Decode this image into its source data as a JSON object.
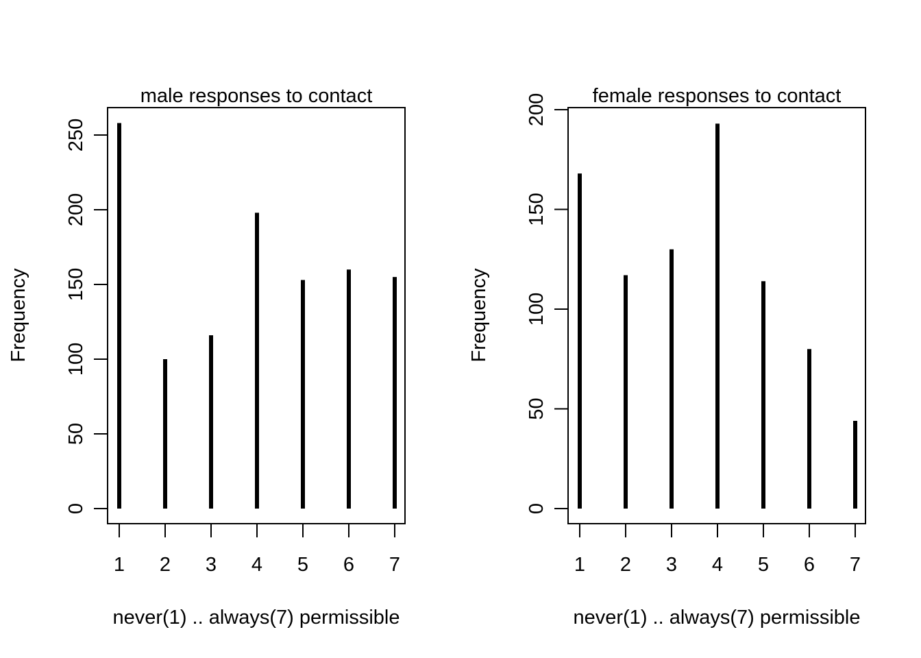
{
  "chart_data": [
    {
      "type": "bar",
      "title": "male responses to contact",
      "xlabel": "never(1) .. always(7) permissible",
      "ylabel": "Frequency",
      "categories": [
        "1",
        "2",
        "3",
        "4",
        "5",
        "6",
        "7"
      ],
      "values": [
        258,
        100,
        116,
        198,
        153,
        160,
        155
      ],
      "yticks": [
        "0",
        "50",
        "100",
        "150",
        "200",
        "250"
      ],
      "ylim": [
        0,
        260
      ],
      "grid": false,
      "color": "#000000"
    },
    {
      "type": "bar",
      "title": "female responses to contact",
      "xlabel": "never(1) .. always(7) permissible",
      "ylabel": "Frequency",
      "categories": [
        "1",
        "2",
        "3",
        "4",
        "5",
        "6",
        "7"
      ],
      "values": [
        168,
        117,
        130,
        193,
        114,
        80,
        44
      ],
      "yticks": [
        "0",
        "50",
        "100",
        "150",
        "200"
      ],
      "ylim": [
        0,
        200
      ],
      "grid": false,
      "color": "#000000"
    }
  ]
}
